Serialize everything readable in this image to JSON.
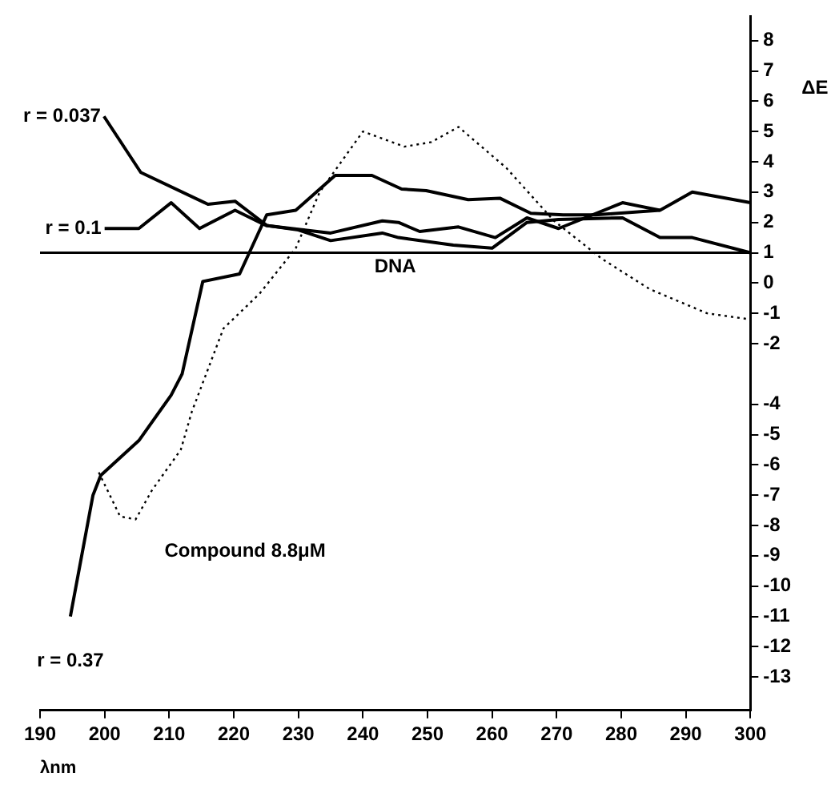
{
  "chart_data": {
    "type": "line",
    "xlabel": "λnm",
    "ylabel": "ΔE",
    "xlim": [
      190,
      300
    ],
    "ylim": [
      -14.1,
      8.8
    ],
    "xticks": [
      190,
      200,
      210,
      220,
      230,
      240,
      250,
      260,
      270,
      280,
      290,
      300
    ],
    "yticks": [
      8,
      7,
      6,
      5,
      4,
      3,
      2,
      1,
      0,
      -1,
      -2,
      -4,
      -5,
      -6,
      -7,
      -8,
      -9,
      -10,
      -11,
      -12,
      -13
    ],
    "grid": false,
    "legend": false,
    "marker": "none",
    "ref_lines": [
      {
        "axis": "y",
        "value": 1,
        "label": "DNA",
        "color": "#000000"
      }
    ],
    "series": [
      {
        "name": "r = 0.037",
        "color": "#000000",
        "line_style": "solid",
        "x": [
          199.9,
          205.6,
          216,
          220.2,
          225.1,
          230,
          235,
          243,
          245.5,
          254,
          260,
          265.4,
          270.3,
          280.2,
          286,
          291,
          300
        ],
        "values": [
          5.5,
          3.65,
          2.6,
          2.7,
          1.9,
          1.75,
          1.4,
          1.65,
          1.5,
          1.25,
          1.15,
          2.0,
          2.1,
          2.15,
          1.5,
          1.5,
          1.0
        ]
      },
      {
        "name": "r = 0.1",
        "color": "#000000",
        "line_style": "solid",
        "x": [
          200,
          205.3,
          210.3,
          214.7,
          220.2,
          225,
          235,
          243,
          245.5,
          248.8,
          254.8,
          260.5,
          265.4,
          270.3,
          280.2,
          286
        ],
        "values": [
          1.8,
          1.8,
          2.65,
          1.8,
          2.4,
          1.9,
          1.65,
          2.05,
          2.0,
          1.7,
          1.85,
          1.5,
          2.15,
          1.8,
          2.65,
          2.4
        ]
      },
      {
        "name": "r = 0.37",
        "color": "#000000",
        "line_style": "solid",
        "x": [
          194.7,
          198.2,
          199.4,
          205.3,
          210.3,
          212,
          215.2,
          220.9,
          225.1,
          229.6,
          235.7,
          241.4,
          246,
          249.8,
          256.3,
          261.2,
          266,
          271,
          276,
          286,
          291,
          300
        ],
        "values": [
          -11,
          -7,
          -6.35,
          -5.2,
          -3.7,
          -3.0,
          0.05,
          0.3,
          2.25,
          2.4,
          3.55,
          3.55,
          3.1,
          3.05,
          2.75,
          2.8,
          2.3,
          2.25,
          2.25,
          2.4,
          3.0,
          2.65
        ]
      },
      {
        "name": "Compound 8.8μM",
        "color": "#000000",
        "line_style": "dotted",
        "x": [
          199.1,
          202.4,
          204.8,
          207.3,
          211.8,
          213.5,
          218.4,
          224,
          229.6,
          233.3,
          240,
          246.4,
          250.6,
          254.8,
          262.2,
          269.6,
          277,
          284.4,
          293.3,
          300
        ],
        "values": [
          -6.25,
          -7.7,
          -7.8,
          -6.85,
          -5.5,
          -4.25,
          -1.5,
          -0.35,
          1.15,
          3.0,
          5.0,
          4.5,
          4.65,
          5.15,
          3.8,
          2.05,
          0.8,
          -0.2,
          -1.0,
          -1.2
        ]
      }
    ]
  }
}
